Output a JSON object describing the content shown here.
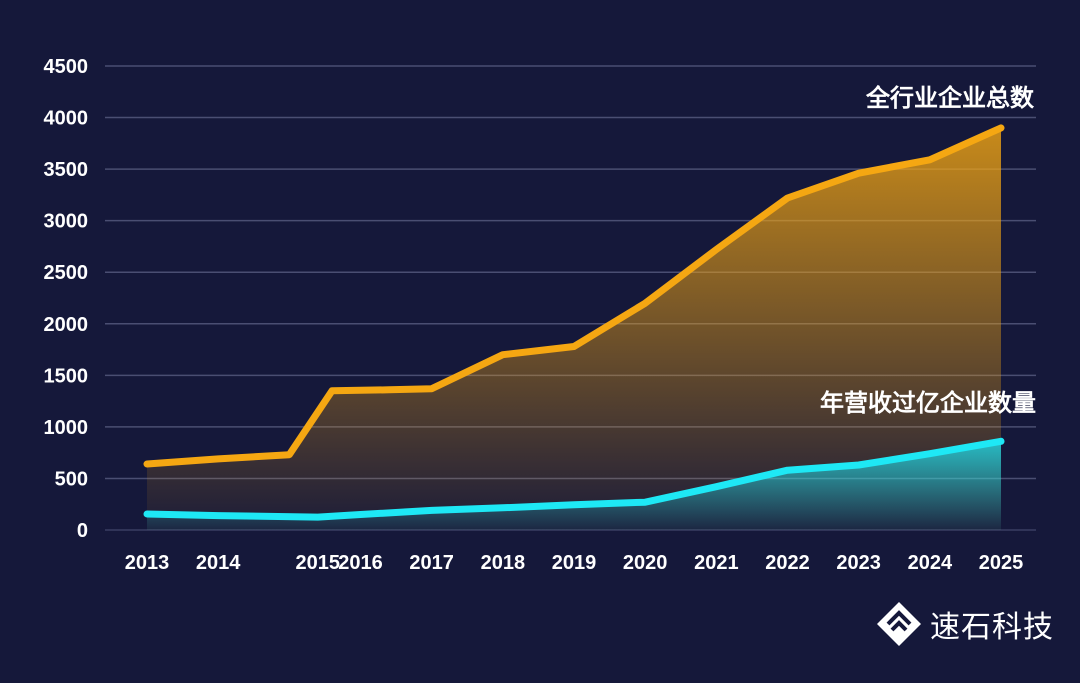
{
  "chart_data": {
    "type": "area",
    "categories": [
      "2013",
      "2014",
      "2015",
      "2016",
      "2017",
      "2018",
      "2019",
      "2020",
      "2021",
      "2022",
      "2023",
      "2024",
      "2025"
    ],
    "x_points": [
      2013,
      2014,
      2015.4,
      2016,
      2017,
      2018,
      2019,
      2020,
      2021,
      2022,
      2023,
      2024,
      2025
    ],
    "ylim": [
      0,
      4500
    ],
    "yticks": [
      "0",
      "500",
      "1000",
      "1500",
      "2000",
      "2500",
      "3000",
      "3500",
      "4000",
      "4500"
    ],
    "series": [
      {
        "name": "全行业企业总数",
        "color": "#f5a712",
        "points": [
          [
            2013,
            640
          ],
          [
            2014,
            690
          ],
          [
            2015,
            730
          ],
          [
            2015.6,
            1350
          ],
          [
            2016.4,
            1360
          ],
          [
            2017,
            1370
          ],
          [
            2018,
            1700
          ],
          [
            2019,
            1780
          ],
          [
            2020,
            2200
          ],
          [
            2021,
            2720
          ],
          [
            2022,
            3220
          ],
          [
            2023,
            3460
          ],
          [
            2024,
            3590
          ],
          [
            2025,
            3900
          ]
        ]
      },
      {
        "name": "年营收过亿企业数量",
        "color": "#1ee8f5",
        "points": [
          [
            2013,
            155
          ],
          [
            2014,
            140
          ],
          [
            2015.4,
            125
          ],
          [
            2016,
            150
          ],
          [
            2017,
            190
          ],
          [
            2018,
            215
          ],
          [
            2019,
            245
          ],
          [
            2020,
            270
          ],
          [
            2021,
            420
          ],
          [
            2022,
            580
          ],
          [
            2023,
            630
          ],
          [
            2024,
            740
          ],
          [
            2025,
            860
          ]
        ]
      }
    ]
  },
  "brand": {
    "name": "速石科技"
  }
}
